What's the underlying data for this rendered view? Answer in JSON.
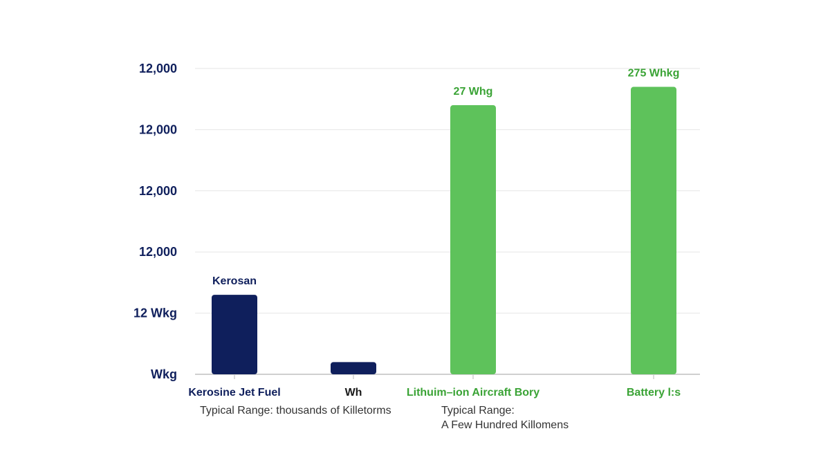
{
  "chart_data": {
    "type": "bar",
    "categories": [
      "Kerosine Jet Fuel",
      "Wh",
      "Lithuim–ion Aircraft Bory",
      "Battery l:s"
    ],
    "values": [
      1.3,
      0.2,
      4.4,
      4.7
    ],
    "category_colors": [
      "#0f1f5c",
      "#0f1f5c",
      "#5ec25b",
      "#5ec25b"
    ],
    "category_label_colors": [
      "#0f1f5c",
      "#1a1a1a",
      "#3aa335",
      "#3aa335"
    ],
    "data_labels": [
      "Kerosan",
      "",
      "27 Whg",
      "275 Whkg"
    ],
    "data_label_colors": [
      "#0f1f5c",
      "#0f1f5c",
      "#3aa335",
      "#3aa335"
    ],
    "y_tick_labels": [
      "Wkg",
      "12 Wkg",
      "12,000",
      "12,000",
      "12,000",
      "12,000"
    ],
    "y_tick_values": [
      0,
      1,
      2,
      3,
      4,
      5
    ],
    "ylim": [
      0,
      5
    ],
    "grid": true,
    "xlabel": "",
    "ylabel": "",
    "title": "",
    "annotations": [
      {
        "category": 0,
        "lines": [
          "Typical Range: thousands of Killetorms"
        ]
      },
      {
        "category": 2,
        "lines": [
          "Typical Range:",
          "A Few Hundred Killomens"
        ]
      }
    ],
    "colors": {
      "axis_text": "#0f1f5c",
      "grid": "#e6e6e6",
      "axis": "#cfcfcf"
    }
  }
}
